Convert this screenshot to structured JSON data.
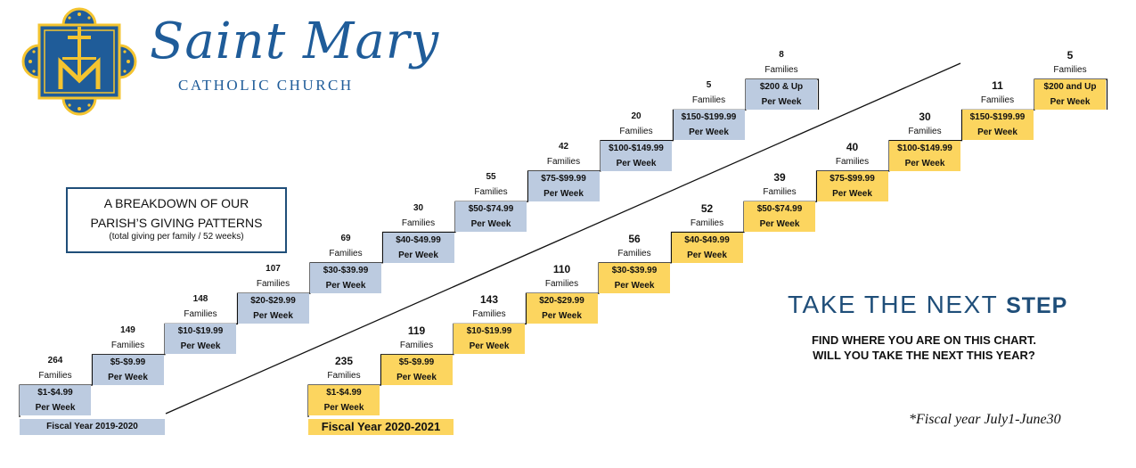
{
  "brand": {
    "name": "Saint Mary",
    "subtitle": "CATHOLIC CHURCH"
  },
  "breakdown": {
    "line1": "A BREAKDOWN OF OUR",
    "line2": "PARISH’S GIVING PATTERNS",
    "line3": "(total giving per family / 52 weeks)"
  },
  "tagline": {
    "main": "TAKE THE NEXT ",
    "step_word": "STEP",
    "cta_line1": "FIND WHERE YOU ARE ON THIS CHART.",
    "cta_line2": "WILL YOU TAKE THE NEXT THIS YEAR?"
  },
  "footnote": "*Fiscal year July1-June30",
  "colors": {
    "brand_blue": "#1f5c99",
    "navy": "#1f4e79",
    "fy2019_fill": "#bccbe0",
    "fy2020_fill": "#fcd55f"
  },
  "chart_data": {
    "type": "bar",
    "categories": [
      "$1-$4.99",
      "$5-$9.99",
      "$10-$19.99",
      "$20-$29.99",
      "$30-$39.99",
      "$40-$49.99",
      "$50-$74.99",
      "$75-$99.99",
      "$100-$149.99",
      "$150-$199.99",
      "$200 & Up"
    ],
    "unit_label": "Families",
    "period_label": "Per Week",
    "series": [
      {
        "name": "Fiscal Year 2019-2020",
        "color": "#bccbe0",
        "labels": [
          "$1-$4.99",
          "$5-$9.99",
          "$10-$19.99",
          "$20-$29.99",
          "$30-$39.99",
          "$40-$49.99",
          "$50-$74.99",
          "$75-$99.99",
          "$100-$149.99",
          "$150-$199.99",
          "$200 & Up"
        ],
        "values": [
          264,
          149,
          148,
          107,
          69,
          30,
          55,
          42,
          20,
          5,
          8
        ]
      },
      {
        "name": "Fiscal Year 2020-2021",
        "color": "#fcd55f",
        "labels": [
          "$1-$4.99",
          "$5-$9.99",
          "$10-$19.99",
          "$20-$29.99",
          "$30-$39.99",
          "$40-$49.99",
          "$50-$74.99",
          "$75-$99.99",
          "$100-$149.99",
          "$150-$199.99",
          "$200 and Up"
        ],
        "values": [
          235,
          119,
          143,
          110,
          56,
          52,
          39,
          40,
          30,
          11,
          5
        ]
      }
    ]
  }
}
